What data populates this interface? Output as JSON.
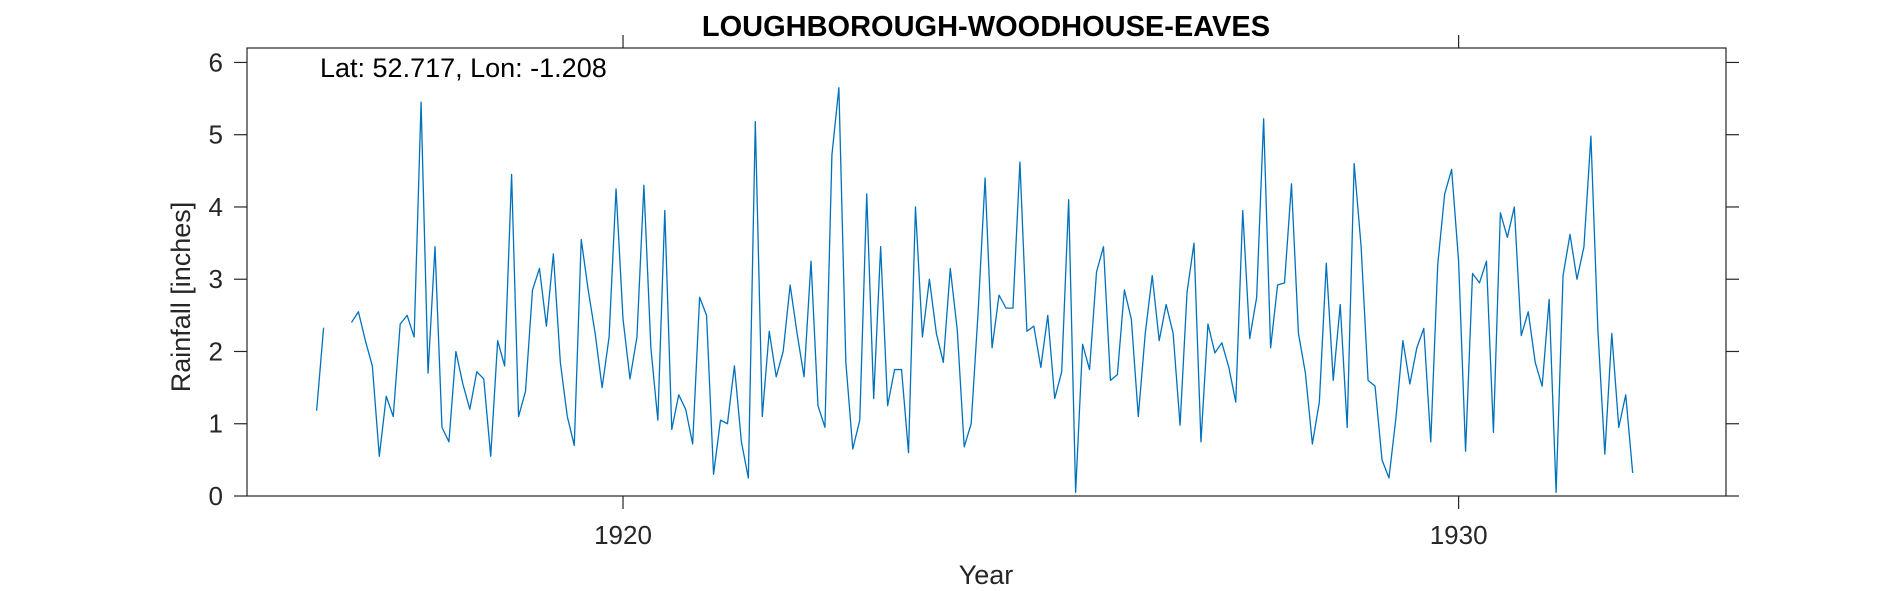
{
  "chart_data": {
    "type": "line",
    "title": "LOUGHBOROUGH-WOODHOUSE-EAVES",
    "annotation": "Lat: 52.717, Lon: -1.208",
    "xlabel": "Year",
    "ylabel": "Rainfall [inches]",
    "xlim": [
      1915.5,
      1933.2
    ],
    "ylim": [
      0,
      6.2
    ],
    "xticks": [
      1920,
      1930
    ],
    "xtick_labels": [
      "1920",
      "1930"
    ],
    "yticks": [
      0,
      1,
      2,
      3,
      4,
      5,
      6
    ],
    "ytick_labels": [
      "0",
      "1",
      "2",
      "3",
      "4",
      "5",
      "6"
    ],
    "grid": false,
    "series": [
      {
        "color": "#0072BD",
        "start_year": 1916.3333,
        "step": 0.083333,
        "values": [
          1.18,
          2.33,
          null,
          null,
          null,
          2.4,
          2.55,
          2.15,
          1.8,
          0.55,
          1.38,
          1.1,
          2.38,
          2.5,
          2.2,
          5.45,
          1.7,
          3.45,
          0.95,
          0.75,
          2.0,
          1.55,
          1.2,
          1.72,
          1.62,
          0.55,
          2.15,
          1.8,
          4.45,
          1.1,
          1.45,
          2.85,
          3.15,
          2.35,
          3.35,
          1.85,
          1.1,
          0.7,
          3.55,
          2.85,
          2.25,
          1.5,
          2.2,
          4.25,
          2.45,
          1.62,
          2.2,
          4.3,
          2.05,
          1.05,
          3.95,
          0.92,
          1.4,
          1.2,
          0.72,
          2.75,
          2.5,
          0.3,
          1.05,
          1.0,
          1.8,
          0.75,
          0.25,
          5.18,
          1.1,
          2.28,
          1.65,
          2.0,
          2.92,
          2.25,
          1.65,
          3.25,
          1.25,
          0.95,
          4.72,
          5.65,
          1.85,
          0.65,
          1.05,
          4.18,
          1.35,
          3.45,
          1.25,
          1.75,
          1.75,
          0.6,
          4.0,
          2.2,
          3.0,
          2.25,
          1.85,
          3.15,
          2.3,
          0.68,
          1.0,
          2.55,
          4.4,
          2.05,
          2.78,
          2.6,
          2.6,
          4.62,
          2.28,
          2.35,
          1.78,
          2.5,
          1.35,
          1.72,
          4.1,
          0.05,
          2.1,
          1.75,
          3.1,
          3.45,
          1.6,
          1.68,
          2.85,
          2.45,
          1.1,
          2.25,
          3.05,
          2.15,
          2.65,
          2.25,
          0.98,
          2.82,
          3.5,
          0.75,
          2.38,
          1.98,
          2.12,
          1.78,
          1.3,
          3.95,
          2.18,
          2.75,
          5.22,
          2.05,
          2.92,
          2.95,
          4.32,
          2.25,
          1.7,
          0.72,
          1.3,
          3.22,
          1.6,
          2.65,
          0.95,
          4.6,
          3.45,
          1.6,
          1.52,
          0.5,
          0.25,
          1.08,
          2.15,
          1.55,
          2.05,
          2.32,
          0.75,
          3.2,
          4.18,
          4.52,
          3.25,
          0.62,
          3.08,
          2.95,
          3.25,
          0.88,
          3.92,
          3.58,
          4.0,
          2.22,
          2.55,
          1.85,
          1.52,
          2.72,
          0.05,
          3.05,
          3.62,
          3.0,
          3.45,
          4.98,
          2.3,
          0.58,
          2.25,
          0.95,
          1.4,
          0.32
        ]
      }
    ]
  }
}
